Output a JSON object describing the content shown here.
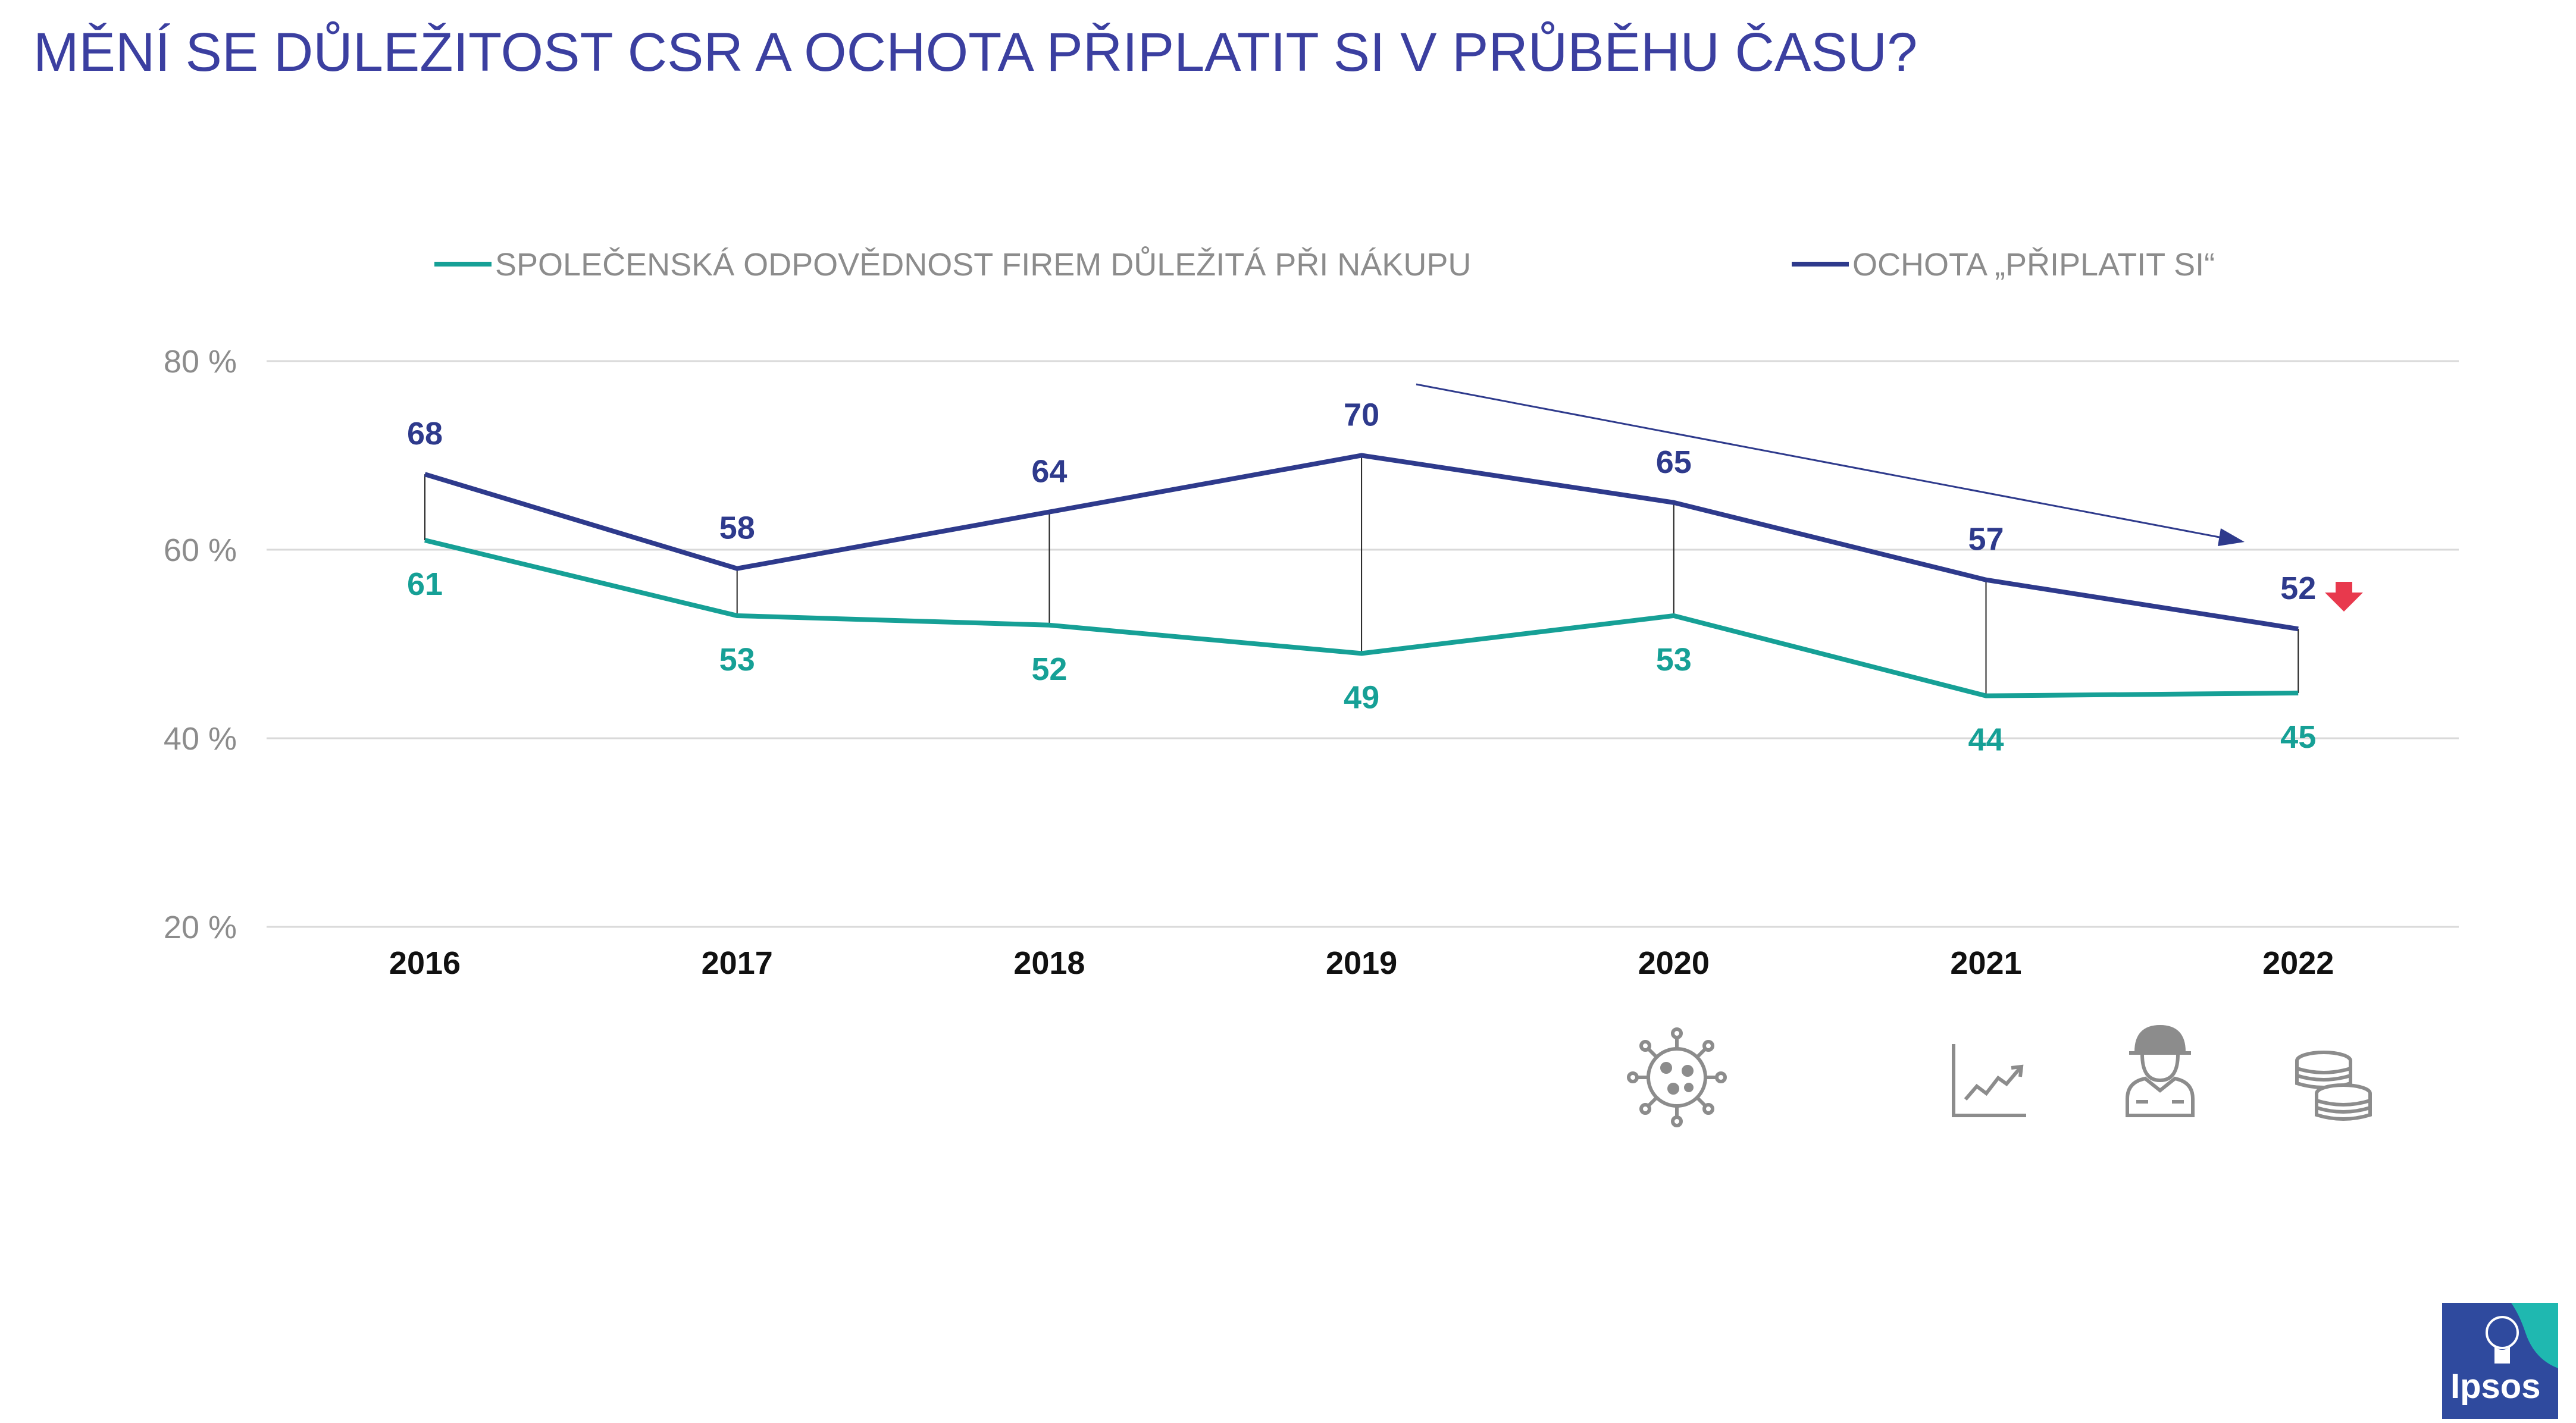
{
  "title": "MĚNÍ SE DŮLEŽITOST CSR A OCHOTA PŘIPLATIT SI V PRŮBĚHU ČASU?",
  "colors": {
    "title": "#3b3fa0",
    "csr": "#16a096",
    "pay": "#2e3a8c",
    "grid": "#d9d9d9",
    "arrow_down": "#e8394d",
    "icons": "#8c8c8c",
    "logo_bg": "#2f4a9e",
    "logo_accent": "#1fb8b0"
  },
  "chart_data": {
    "type": "line",
    "categories": [
      "2016",
      "2017",
      "2018",
      "2019",
      "2020",
      "2021",
      "2022"
    ],
    "y_ticks": [
      80,
      60,
      40,
      20
    ],
    "y_tick_labels": [
      "80 %",
      "60 %",
      "40 %",
      "20 %"
    ],
    "ylim": [
      20,
      80
    ],
    "grid": "horizontal",
    "legend_position": "top",
    "series": [
      {
        "key": "csr",
        "name": "SPOLEČENSKÁ ODPOVĚDNOST FIREM DŮLEŽITÁ PŘI NÁKUPU",
        "values": [
          61,
          53,
          52,
          49,
          53,
          44.5,
          44.8
        ],
        "labels": [
          "61",
          "53",
          "52",
          "49",
          "53",
          "44",
          "45"
        ]
      },
      {
        "key": "pay",
        "name": "OCHOTA „PŘIPLATIT SI“",
        "values": [
          68,
          58,
          64,
          70,
          65,
          56.8,
          51.6
        ],
        "labels": [
          "68",
          "58",
          "64",
          "70",
          "65",
          "57",
          "52"
        ]
      }
    ],
    "annotations": {
      "trend_arrow": "declining trend from 2019 to 2022",
      "down_marker": "red down arrow next to 2022 value"
    }
  },
  "icons": [
    {
      "name": "virus-icon",
      "year": "2020"
    },
    {
      "name": "growth-chart-icon",
      "year": "2021"
    },
    {
      "name": "soldier-icon",
      "year": "2022"
    },
    {
      "name": "coins-icon",
      "year": "2022"
    }
  ],
  "logo": {
    "text": "Ipsos"
  }
}
